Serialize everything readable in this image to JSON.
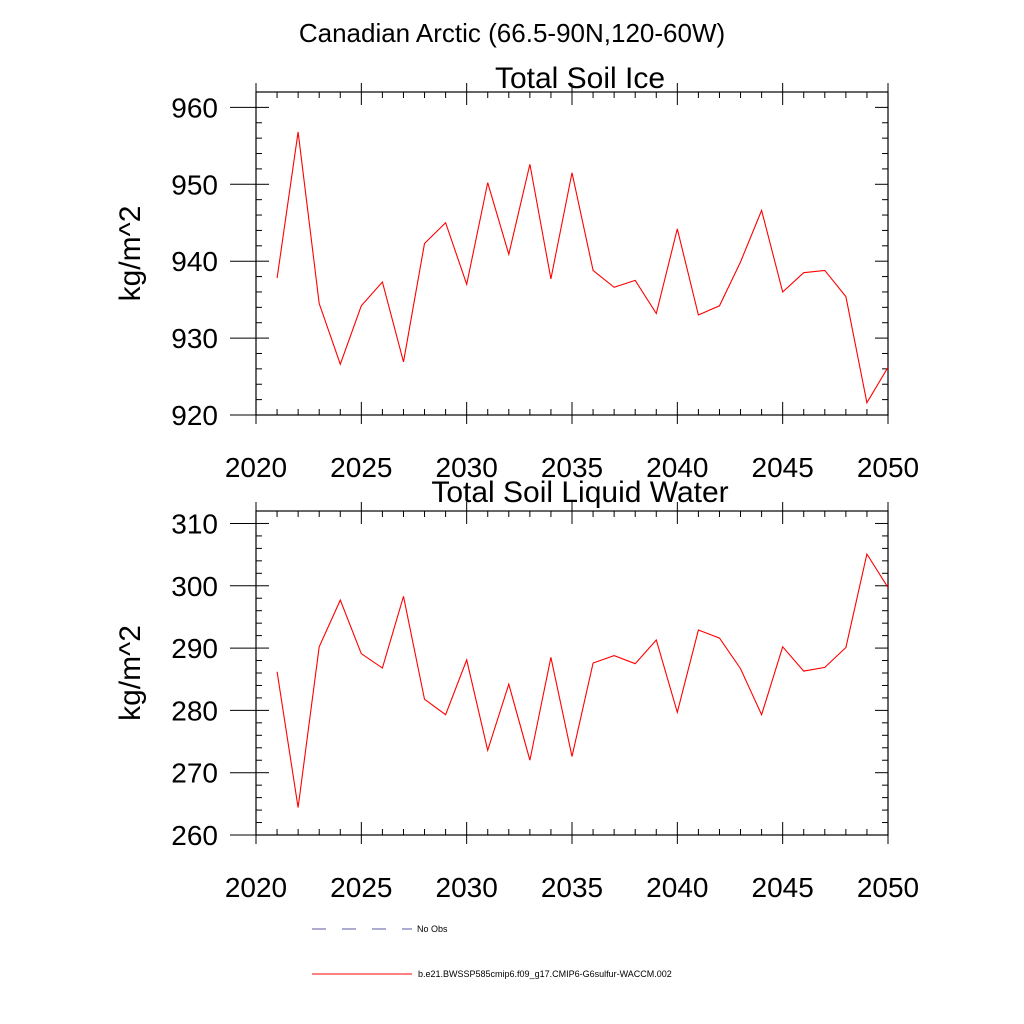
{
  "figure": {
    "title": "Canadian Arctic (66.5-90N,120-60W)"
  },
  "colors": {
    "model_series": "#ff0000",
    "obs_series": "#5a5aa0",
    "axis": "#000000"
  },
  "legend": {
    "entries": [
      {
        "label": "No Obs",
        "style": "dashed",
        "color": "#5a5aa0"
      },
      {
        "label": "b.e21.BWSSP585cmip6.f09_g17.CMIP6-G6sulfur-WACCM.002",
        "style": "solid",
        "color": "#ff0000"
      }
    ]
  },
  "chart_data": [
    {
      "type": "line",
      "title": "Total Soil Ice",
      "xlabel": "",
      "ylabel": "kg/m^2",
      "xlim": [
        2020,
        2050
      ],
      "ylim": [
        920,
        962
      ],
      "xticks": [
        2020,
        2025,
        2030,
        2035,
        2040,
        2045,
        2050
      ],
      "yticks": [
        920,
        930,
        940,
        950,
        960
      ],
      "grid": false,
      "x": [
        2021,
        2022,
        2023,
        2024,
        2025,
        2026,
        2027,
        2028,
        2029,
        2030,
        2031,
        2032,
        2033,
        2034,
        2035,
        2036,
        2037,
        2038,
        2039,
        2040,
        2041,
        2042,
        2043,
        2044,
        2045,
        2046,
        2047,
        2048,
        2049,
        2050
      ],
      "series": [
        {
          "color": "#ff0000",
          "values": [
            937.8,
            956.8,
            934.5,
            926.6,
            934.2,
            937.3,
            926.9,
            942.3,
            945.0,
            937.0,
            950.2,
            940.9,
            952.6,
            937.7,
            951.5,
            938.8,
            936.6,
            937.5,
            933.2,
            944.2,
            933.0,
            934.2,
            939.9,
            946.6,
            936.0,
            938.5,
            938.8,
            935.4,
            921.6,
            926.2
          ]
        }
      ]
    },
    {
      "type": "line",
      "title": "Total Soil Liquid Water",
      "xlabel": "",
      "ylabel": "kg/m^2",
      "xlim": [
        2020,
        2050
      ],
      "ylim": [
        260,
        312
      ],
      "xticks": [
        2020,
        2025,
        2030,
        2035,
        2040,
        2045,
        2050
      ],
      "yticks": [
        260,
        270,
        280,
        290,
        300,
        310
      ],
      "grid": false,
      "x": [
        2021,
        2022,
        2023,
        2024,
        2025,
        2026,
        2027,
        2028,
        2029,
        2030,
        2031,
        2032,
        2033,
        2034,
        2035,
        2036,
        2037,
        2038,
        2039,
        2040,
        2041,
        2042,
        2043,
        2044,
        2045,
        2046,
        2047,
        2048,
        2049,
        2050
      ],
      "series": [
        {
          "color": "#ff0000",
          "values": [
            286.2,
            264.4,
            290.2,
            297.7,
            289.1,
            286.8,
            298.3,
            281.8,
            279.3,
            288.1,
            273.6,
            284.2,
            272.0,
            288.5,
            272.6,
            287.6,
            288.8,
            287.5,
            291.3,
            279.7,
            292.9,
            291.6,
            286.7,
            279.3,
            290.2,
            286.3,
            286.9,
            290.1,
            305.1,
            299.7
          ]
        }
      ]
    }
  ]
}
